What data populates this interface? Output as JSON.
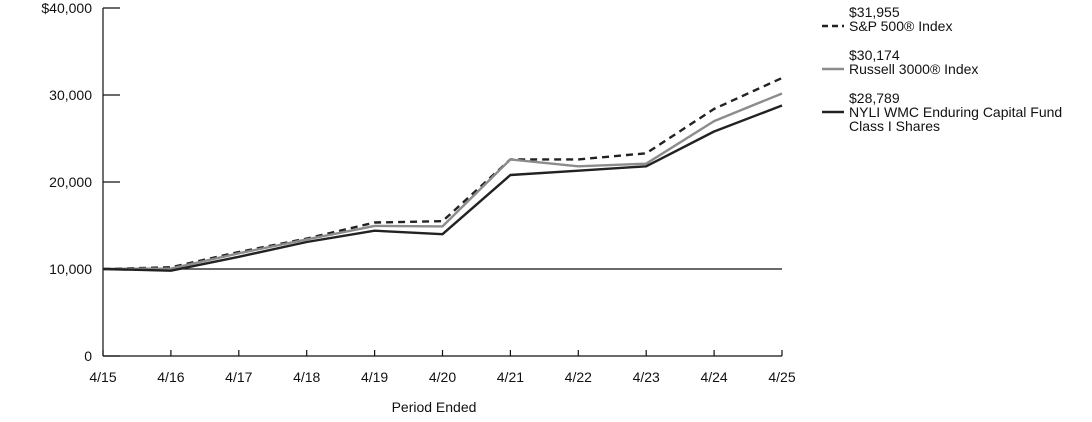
{
  "chart_data": {
    "type": "line",
    "title": "",
    "xlabel": "Period Ended",
    "ylabel": "",
    "categories": [
      "4/15",
      "4/16",
      "4/17",
      "4/18",
      "4/19",
      "4/20",
      "4/21",
      "4/22",
      "4/23",
      "4/24",
      "4/25"
    ],
    "ylim": [
      0,
      40000
    ],
    "yticks": [
      {
        "value": 0,
        "label": "0"
      },
      {
        "value": 10000,
        "label": "10,000"
      },
      {
        "value": 20000,
        "label": "20,000"
      },
      {
        "value": 30000,
        "label": "30,000"
      },
      {
        "value": 40000,
        "label": "$40,000"
      }
    ],
    "baseline": 10000,
    "legend_position": "right",
    "series": [
      {
        "name": "S&P 500® Index",
        "end_label": "$31,955",
        "color": "#222222",
        "style": "dashed",
        "values": [
          10000,
          10200,
          11950,
          13500,
          15350,
          15500,
          22600,
          22600,
          23300,
          28400,
          31955
        ]
      },
      {
        "name": "Russell 3000® Index",
        "end_label": "$30,174",
        "color": "#8c8c8c",
        "style": "solid",
        "values": [
          10000,
          10050,
          11800,
          13400,
          14950,
          14900,
          22600,
          21800,
          22100,
          27000,
          30174
        ]
      },
      {
        "name": "NYLI WMC Enduring Capital Fund Class I Shares",
        "name_lines": [
          "NYLI WMC Enduring Capital Fund",
          "Class I Shares"
        ],
        "end_label": "$28,789",
        "color": "#222222",
        "style": "solid",
        "values": [
          10000,
          9800,
          11400,
          13100,
          14400,
          14000,
          20800,
          21300,
          21800,
          25800,
          28789
        ]
      }
    ]
  }
}
